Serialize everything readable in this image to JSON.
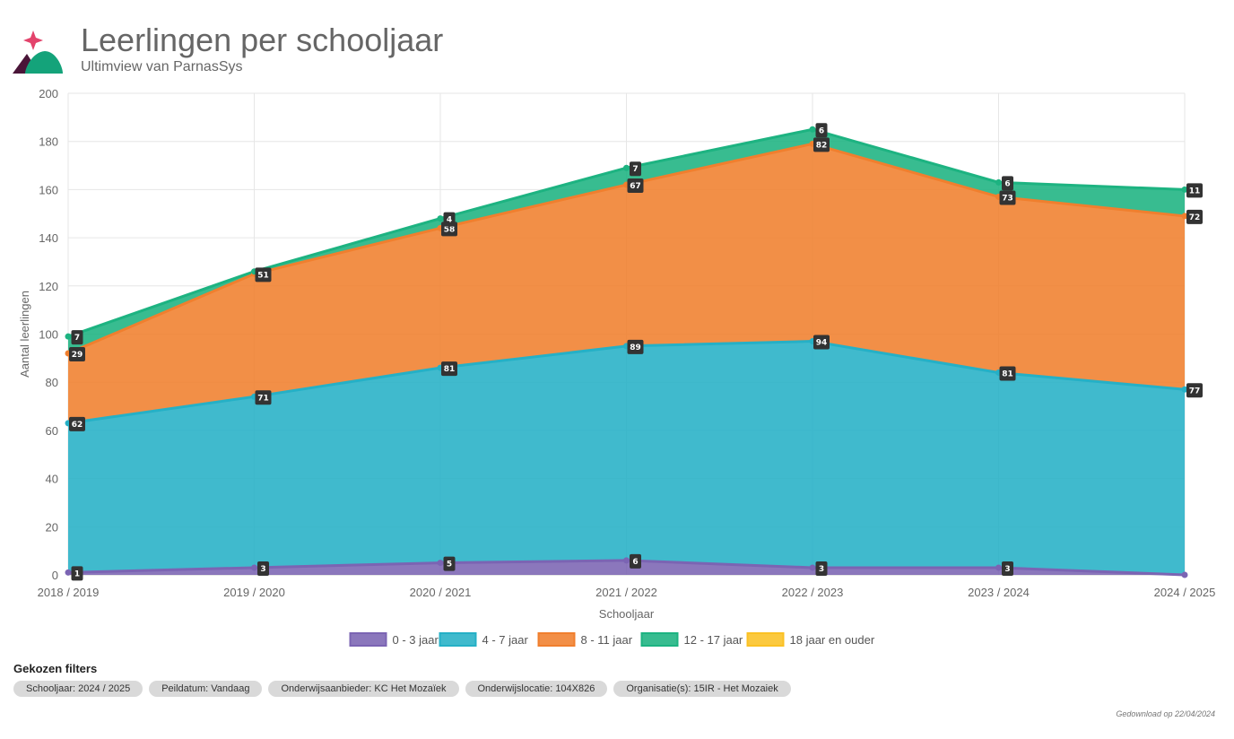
{
  "header": {
    "title": "Leerlingen per schooljaar",
    "subtitle": "Ultimview van ParnasSys"
  },
  "colors": {
    "series": [
      "#7b64b3",
      "#25b0c6",
      "#f07f2e",
      "#1db381",
      "#fbc124"
    ]
  },
  "chart_data": {
    "type": "area",
    "stacked": true,
    "xlabel": "Schooljaar",
    "ylabel": "Aantal leerlingen",
    "ylim": [
      0,
      200
    ],
    "yticks": [
      0,
      20,
      40,
      60,
      80,
      100,
      120,
      140,
      160,
      180,
      200
    ],
    "categories": [
      "2018 / 2019",
      "2019 / 2020",
      "2020 / 2021",
      "2021 / 2022",
      "2022 / 2023",
      "2023 / 2024",
      "2024 / 2025"
    ],
    "series": [
      {
        "name": "0 - 3 jaar",
        "values": [
          1,
          3,
          5,
          6,
          3,
          3,
          0
        ],
        "labels": [
          "1",
          "3",
          "5",
          "6",
          "3",
          "3",
          null
        ]
      },
      {
        "name": "4 - 7 jaar",
        "values": [
          62,
          71,
          81,
          89,
          94,
          81,
          77
        ],
        "labels": [
          "62",
          "71",
          "81",
          "89",
          "94",
          "81",
          "77"
        ]
      },
      {
        "name": "8 - 11 jaar",
        "values": [
          29,
          51,
          58,
          67,
          82,
          73,
          72
        ],
        "labels": [
          "29",
          "51",
          "58",
          "67",
          "82",
          "73",
          "72"
        ]
      },
      {
        "name": "12 - 17 jaar",
        "values": [
          7,
          1,
          4,
          7,
          6,
          6,
          11
        ],
        "labels": [
          "7",
          null,
          "4",
          "7",
          "6",
          "6",
          "11"
        ]
      },
      {
        "name": "18 jaar en ouder",
        "values": [
          0,
          0,
          0,
          0,
          0,
          0,
          0
        ],
        "labels": [
          null,
          null,
          null,
          null,
          null,
          null,
          null
        ]
      }
    ],
    "legend_position": "bottom"
  },
  "filters": {
    "title": "Gekozen filters",
    "chips": [
      "Schooljaar: 2024 / 2025",
      "Peildatum: Vandaag",
      "Onderwijsaanbieder: KC Het Mozaïek",
      "Onderwijslocatie: 104X826",
      "Organisatie(s): 15IR - Het Mozaiek"
    ]
  },
  "footer": {
    "download_text": "Gedownload op 22/04/2024"
  }
}
